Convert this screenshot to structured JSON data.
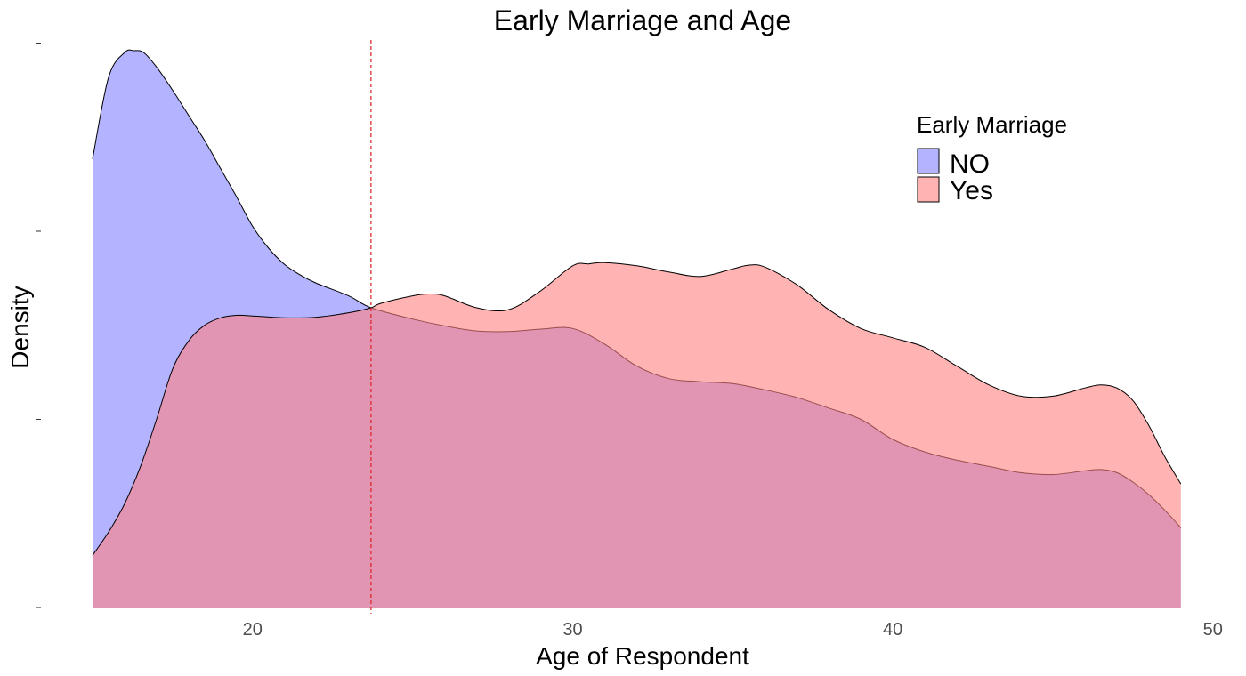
{
  "chart_data": {
    "type": "area",
    "title": "Early Marriage and Age",
    "xlabel": "Age of Respondent",
    "ylabel": "Density",
    "xlim": [
      13.5,
      50.2
    ],
    "ylim": [
      -0.001,
      0.0905
    ],
    "x_ticks": [
      20,
      30,
      40,
      50
    ],
    "y_ticks": [
      0,
      0.03,
      0.06,
      0.09
    ],
    "y_tick_labels_shown": false,
    "grid": false,
    "legend": {
      "title": "Early Marriage",
      "placement": "top-right"
    },
    "reference_line": {
      "x": 23.7,
      "color": "#dc2020",
      "style": "dashed"
    },
    "series": [
      {
        "name": "NO",
        "color": "#8080ff",
        "x": [
          15,
          15.5,
          16,
          16.3,
          16.6,
          17,
          17.5,
          18,
          18.5,
          19,
          19.5,
          20,
          20.5,
          21,
          21.5,
          22,
          23,
          23.7,
          25,
          26,
          27,
          28,
          29,
          30,
          31,
          32,
          33,
          34,
          35,
          36,
          37,
          38,
          39,
          40,
          41,
          42,
          43,
          44,
          45,
          46,
          46.5,
          47,
          47.5,
          48,
          48.5,
          49
        ],
        "y": [
          0.0715,
          0.0845,
          0.0885,
          0.0888,
          0.0885,
          0.0862,
          0.0825,
          0.0785,
          0.0745,
          0.07,
          0.0655,
          0.0608,
          0.0573,
          0.0547,
          0.053,
          0.0517,
          0.0497,
          0.0478,
          0.046,
          0.0449,
          0.0441,
          0.044,
          0.0444,
          0.0445,
          0.042,
          0.0385,
          0.0365,
          0.036,
          0.0357,
          0.0347,
          0.0335,
          0.0318,
          0.03,
          0.0268,
          0.0248,
          0.0235,
          0.0225,
          0.0215,
          0.0212,
          0.0218,
          0.022,
          0.0215,
          0.02,
          0.018,
          0.0155,
          0.0127
        ]
      },
      {
        "name": "Yes",
        "color": "#ff8080",
        "x": [
          15,
          15.5,
          16,
          16.5,
          17,
          17.5,
          18,
          18.5,
          19,
          19.5,
          20,
          21,
          22,
          23,
          23.7,
          24,
          25,
          25.5,
          26,
          27,
          28,
          29,
          30,
          30.5,
          31,
          32,
          33,
          34,
          35,
          35.5,
          36,
          37,
          38,
          39,
          40,
          41,
          42,
          43,
          44,
          45,
          46,
          46.5,
          47,
          47.5,
          48,
          48.5,
          49
        ],
        "y": [
          0.0083,
          0.012,
          0.0165,
          0.0225,
          0.03,
          0.038,
          0.0425,
          0.045,
          0.0462,
          0.0466,
          0.0465,
          0.0462,
          0.0463,
          0.047,
          0.0478,
          0.0485,
          0.0497,
          0.05,
          0.0497,
          0.0478,
          0.0475,
          0.0505,
          0.0545,
          0.0548,
          0.055,
          0.0545,
          0.0535,
          0.0528,
          0.054,
          0.0546,
          0.0543,
          0.0515,
          0.0475,
          0.0445,
          0.043,
          0.0415,
          0.0385,
          0.0355,
          0.0337,
          0.0337,
          0.035,
          0.0355,
          0.035,
          0.033,
          0.029,
          0.024,
          0.0197
        ]
      }
    ]
  }
}
